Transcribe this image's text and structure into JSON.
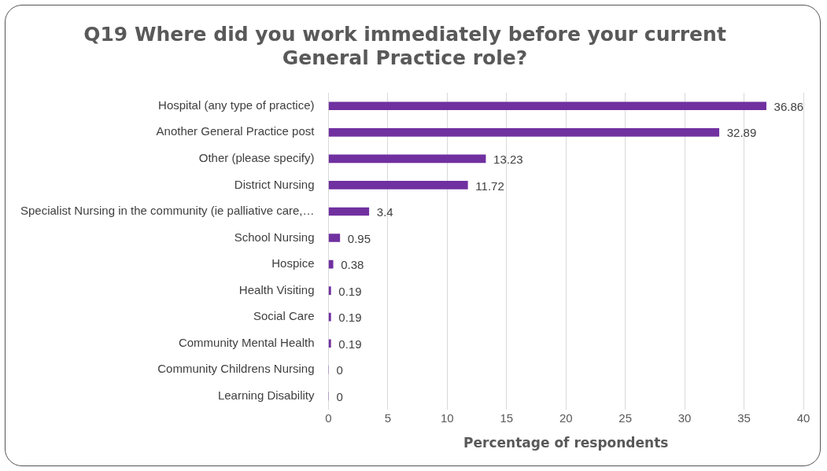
{
  "chart_data": {
    "type": "bar",
    "orientation": "horizontal",
    "title": "Q19 Where did you work immediately before your current General Practice role?",
    "xlabel": "Percentage of respondents",
    "categories": [
      "Hospital (any type of practice)",
      "Another General Practice post",
      "Other (please specify)",
      "District Nursing",
      "Specialist Nursing in the community (ie palliative care,…",
      "School Nursing",
      "Hospice",
      "Health Visiting",
      "Social Care",
      "Community Mental Health",
      "Community Childrens Nursing",
      "Learning Disability"
    ],
    "values": [
      36.86,
      32.89,
      13.23,
      11.72,
      3.4,
      0.95,
      0.38,
      0.19,
      0.19,
      0.19,
      0,
      0
    ],
    "color": "#7030a0",
    "xlim": [
      0,
      40
    ],
    "xticks": [
      0,
      5,
      10,
      15,
      20,
      25,
      30,
      35,
      40
    ],
    "grid": "x",
    "data_labels": true
  }
}
